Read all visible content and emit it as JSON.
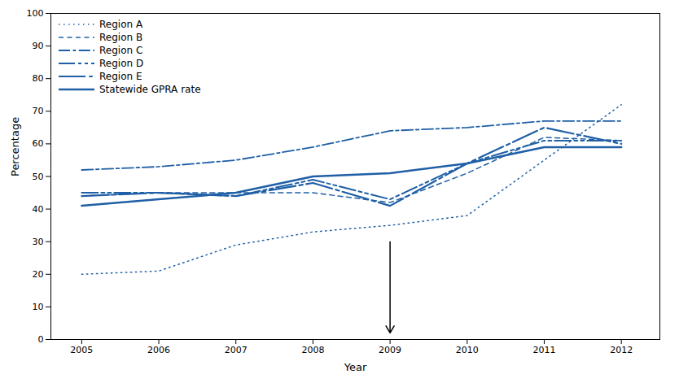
{
  "chart_data": {
    "type": "line",
    "x": [
      2005,
      2006,
      2007,
      2008,
      2009,
      2010,
      2011,
      2012
    ],
    "series": [
      {
        "name": "Region A",
        "color": "#1f5fa6",
        "line_style": "dotted",
        "values": [
          20,
          21,
          29,
          33,
          35,
          38,
          55,
          72
        ]
      },
      {
        "name": "Region B",
        "color": "#1f5fa6",
        "line_style": "dashed",
        "values": [
          44,
          45,
          45,
          45,
          42,
          51,
          62,
          61
        ]
      },
      {
        "name": "Region C",
        "color": "#1f5fa6",
        "line_style": "dashdot",
        "values": [
          52,
          53,
          55,
          59,
          64,
          65,
          67,
          67
        ]
      },
      {
        "name": "Region D",
        "color": "#1f5fa6",
        "line_style": "dashdotdot",
        "values": [
          45,
          45,
          44,
          49,
          43,
          54,
          61,
          61
        ]
      },
      {
        "name": "Region E",
        "color": "#1f5fa6",
        "line_style": "longdashdot",
        "values": [
          44,
          45,
          44,
          48,
          41,
          54,
          65,
          60
        ]
      },
      {
        "name": "Statewide GPRA rate",
        "color": "#1f5fa6",
        "line_style": "solid",
        "values": [
          41,
          43,
          45,
          50,
          51,
          54,
          59,
          59
        ]
      }
    ],
    "xlabel": "Year",
    "ylabel": "Percentage",
    "xlim": [
      2004.6,
      2012.5
    ],
    "ylim": [
      0,
      100
    ],
    "xticks": [
      2005,
      2006,
      2007,
      2008,
      2009,
      2010,
      2011,
      2012
    ],
    "yticks": [
      0,
      10,
      20,
      30,
      40,
      50,
      60,
      70,
      80,
      90,
      100
    ],
    "grid": false,
    "legend": "upper left",
    "annotations": [
      {
        "type": "arrow",
        "x": 2009,
        "y_start": 30,
        "y_end": 2
      }
    ]
  }
}
